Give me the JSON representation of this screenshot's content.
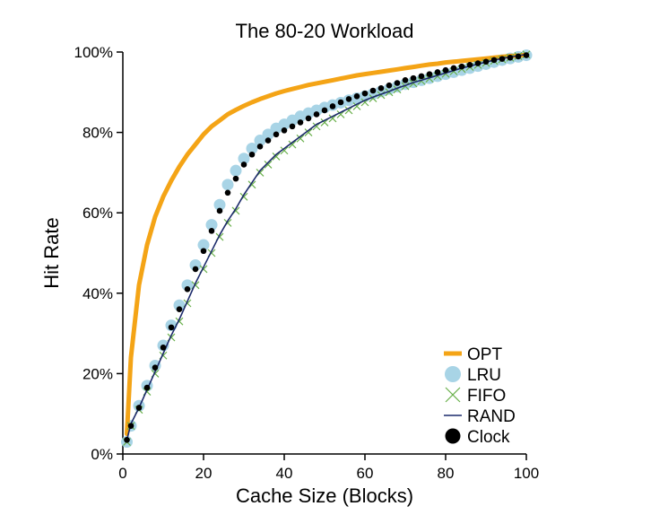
{
  "chart_data": {
    "type": "line",
    "title": "The 80-20 Workload",
    "xlabel": "Cache Size (Blocks)",
    "ylabel": "Hit Rate",
    "xlim": [
      0,
      100
    ],
    "ylim": [
      0,
      100
    ],
    "x_ticks": [
      "0",
      "20",
      "40",
      "60",
      "80",
      "100"
    ],
    "y_ticks": [
      "0%",
      "20%",
      "40%",
      "60%",
      "80%",
      "100%"
    ],
    "grid": false,
    "legend_position": "bottom-right",
    "x": [
      1,
      2,
      4,
      6,
      8,
      10,
      12,
      14,
      16,
      18,
      20,
      22,
      24,
      26,
      28,
      30,
      32,
      34,
      36,
      38,
      40,
      42,
      44,
      46,
      48,
      50,
      52,
      54,
      56,
      58,
      60,
      62,
      64,
      66,
      68,
      70,
      72,
      74,
      76,
      78,
      80,
      82,
      84,
      86,
      88,
      90,
      92,
      94,
      96,
      98,
      100
    ],
    "series": [
      {
        "name": "OPT",
        "color": "#f4a416",
        "marker": "line",
        "values": [
          5,
          24,
          42,
          52,
          59,
          64,
          68,
          71.5,
          74.5,
          77,
          79.5,
          81.5,
          83,
          84.5,
          85.6,
          86.6,
          87.5,
          88.3,
          89,
          89.7,
          90.3,
          90.8,
          91.3,
          91.8,
          92.2,
          92.6,
          93,
          93.4,
          93.8,
          94.2,
          94.5,
          94.8,
          95.1,
          95.4,
          95.7,
          96,
          96.3,
          96.6,
          96.9,
          97.1,
          97.4,
          97.6,
          97.8,
          98,
          98.2,
          98.4,
          98.6,
          98.8,
          99,
          99.1,
          99.3
        ]
      },
      {
        "name": "LRU",
        "color": "#a8d4e6",
        "marker": "circle",
        "values": [
          3,
          7,
          12,
          17,
          22,
          27,
          32,
          37,
          42,
          47,
          52,
          57,
          62,
          67,
          70.5,
          73.5,
          76,
          78,
          79.5,
          81,
          82,
          83,
          84,
          84.8,
          85.5,
          86.2,
          86.8,
          87.4,
          88,
          88.5,
          89,
          89.6,
          90.2,
          90.8,
          91.4,
          92,
          92.5,
          93,
          93.5,
          94,
          94.5,
          95,
          95.5,
          96,
          96.5,
          97,
          97.5,
          98,
          98.4,
          98.8,
          99.2
        ]
      },
      {
        "name": "FIFO",
        "color": "#6ab04c",
        "marker": "x",
        "values": [
          3,
          7,
          11,
          15.5,
          20,
          24.5,
          29,
          33,
          37.5,
          42,
          46,
          50,
          54,
          57.5,
          60.5,
          64,
          67,
          70,
          72,
          74,
          75.5,
          77,
          78.5,
          80,
          81.5,
          82.5,
          83.5,
          84.5,
          85.5,
          86.5,
          87.5,
          88.5,
          89.3,
          90,
          90.7,
          91.5,
          92.2,
          92.8,
          93.4,
          94,
          94.6,
          95.2,
          95.8,
          96.3,
          96.8,
          97.3,
          97.8,
          98.2,
          98.6,
          99,
          99.4
        ]
      },
      {
        "name": "RAND",
        "color": "#1c2a6b",
        "marker": "line",
        "values": [
          3.5,
          7.5,
          11.5,
          16,
          20.5,
          25,
          29.5,
          33.5,
          38,
          42.5,
          46.5,
          50.5,
          54.5,
          58,
          61,
          64.5,
          67.5,
          70.5,
          72.5,
          74.5,
          76,
          77.5,
          79,
          80.5,
          82,
          83,
          84,
          85,
          86,
          87,
          88,
          88.8,
          89.5,
          90.2,
          91,
          91.7,
          92.4,
          93,
          93.6,
          94.2,
          94.8,
          95.4,
          96,
          96.5,
          97,
          97.5,
          98,
          98.4,
          98.8,
          99.1,
          99.4
        ]
      },
      {
        "name": "Clock",
        "color": "#000000",
        "marker": "dot",
        "values": [
          3.5,
          7,
          11.5,
          16.5,
          21.5,
          26.5,
          31.5,
          36,
          41,
          46,
          50.5,
          55.5,
          60.5,
          65,
          68.5,
          72,
          74.5,
          76.5,
          78,
          79.5,
          80.5,
          81.5,
          82.5,
          83.5,
          84.5,
          85.5,
          86.5,
          87.5,
          88.3,
          89,
          89.7,
          90.4,
          91,
          91.7,
          92.3,
          93,
          93.5,
          94,
          94.5,
          95,
          95.5,
          96,
          96.4,
          96.8,
          97.2,
          97.6,
          98,
          98.3,
          98.6,
          98.9,
          99.2
        ]
      }
    ]
  }
}
